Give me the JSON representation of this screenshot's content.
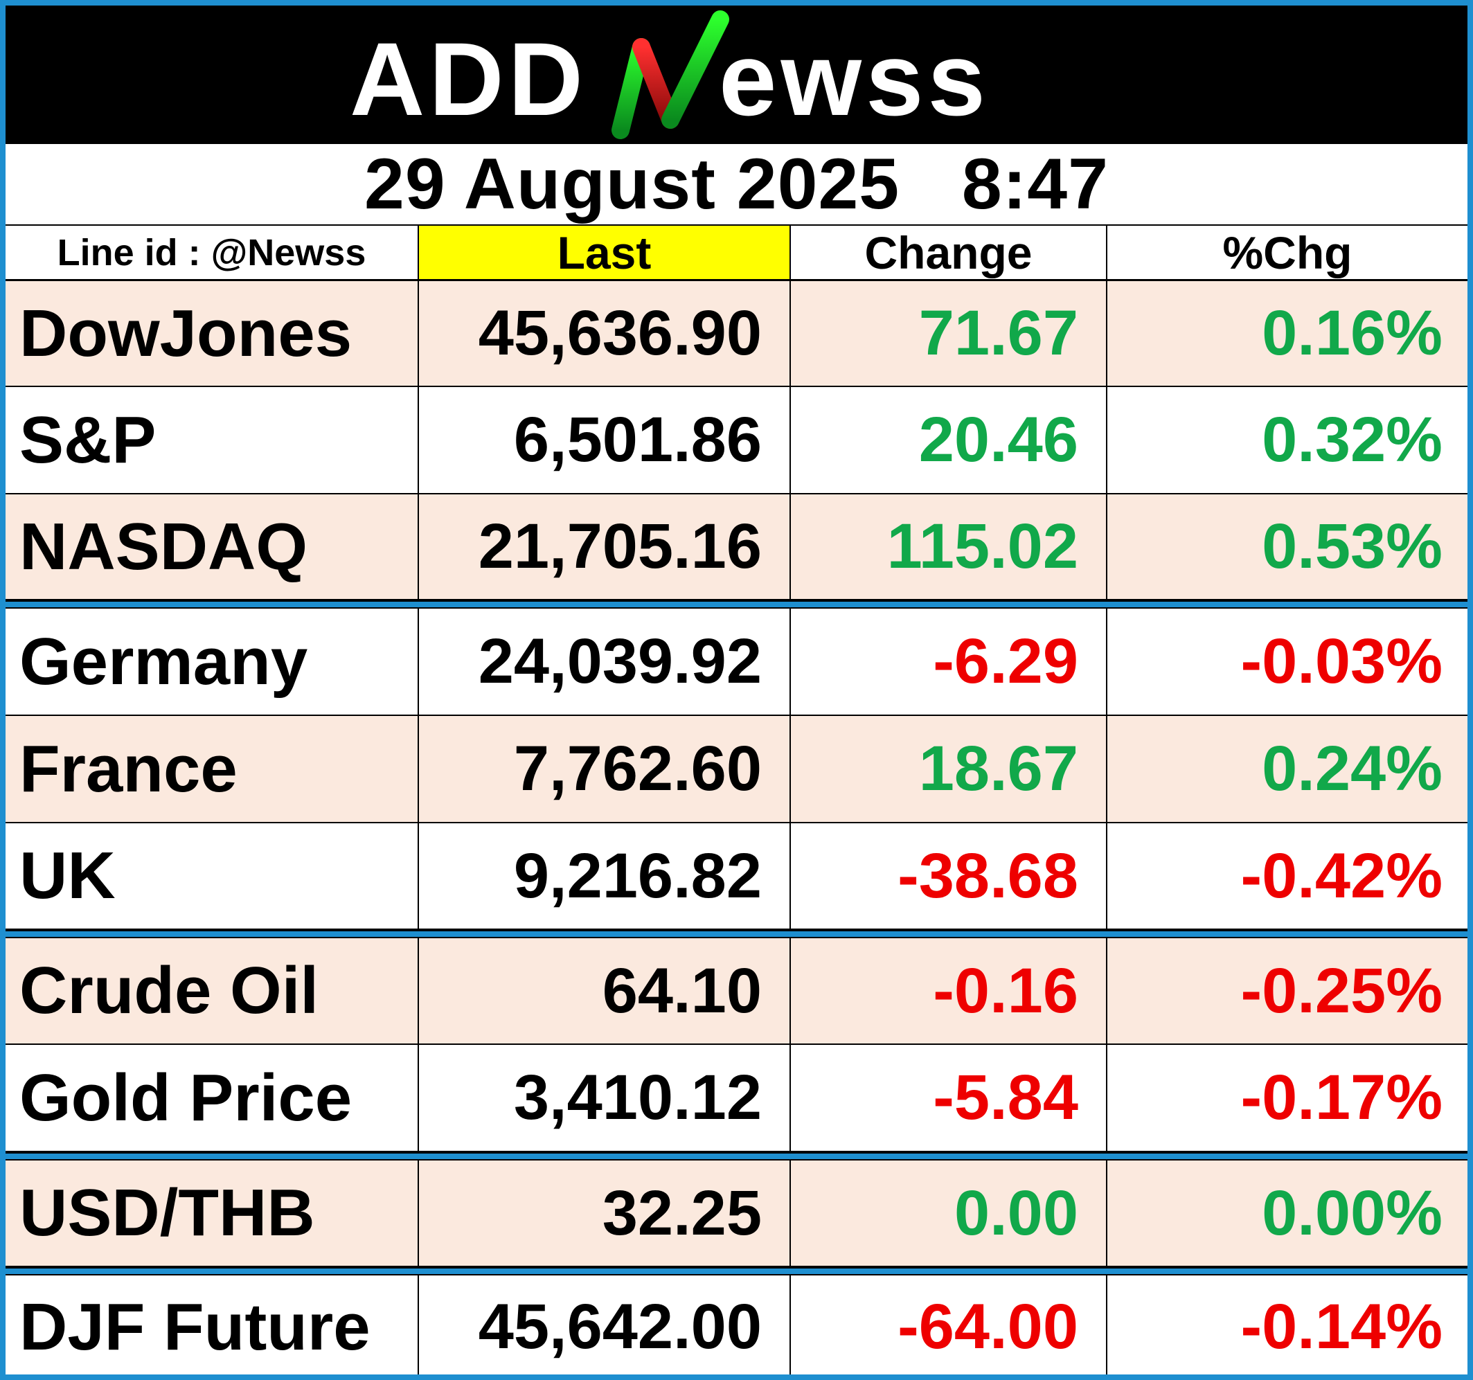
{
  "brand": {
    "logo_text": "ADDNewss",
    "logo_left": "ADD",
    "logo_n": "N",
    "logo_right": "ewss"
  },
  "timestamp": {
    "date": "29 August 2025",
    "time": "8:47"
  },
  "header": {
    "line_id": "Line id : @Newss",
    "last": "Last",
    "change": "Change",
    "pct_change": "%Chg"
  },
  "colors": {
    "positive": "#11a84a",
    "negative": "#ee0000",
    "neutral": "#000000",
    "accent_border": "#1e8fd0",
    "row_peach": "#fbe9de",
    "header_highlight": "#ffff00"
  },
  "rows": [
    {
      "name": "DowJones",
      "last": "45,636.90",
      "change": "71.67",
      "pct": "0.16%",
      "trend": "up"
    },
    {
      "name": "S&P",
      "last": "6,501.86",
      "change": "20.46",
      "pct": "0.32%",
      "trend": "up"
    },
    {
      "name": "NASDAQ",
      "last": "21,705.16",
      "change": "115.02",
      "pct": "0.53%",
      "trend": "up"
    },
    {
      "name": "Germany",
      "last": "24,039.92",
      "change": "-6.29",
      "pct": "-0.03%",
      "trend": "down"
    },
    {
      "name": "France",
      "last": "7,762.60",
      "change": "18.67",
      "pct": "0.24%",
      "trend": "up"
    },
    {
      "name": "UK",
      "last": "9,216.82",
      "change": "-38.68",
      "pct": "-0.42%",
      "trend": "down"
    },
    {
      "name": "Crude Oil",
      "last": "64.10",
      "change": "-0.16",
      "pct": "-0.25%",
      "trend": "down"
    },
    {
      "name": "Gold Price",
      "last": "3,410.12",
      "change": "-5.84",
      "pct": "-0.17%",
      "trend": "down"
    },
    {
      "name": "USD/THB",
      "last": "32.25",
      "change": "0.00",
      "pct": "0.00%",
      "trend": "up"
    },
    {
      "name": "DJF Future",
      "last": "45,642.00",
      "change": "-64.00",
      "pct": "-0.14%",
      "trend": "down"
    }
  ]
}
